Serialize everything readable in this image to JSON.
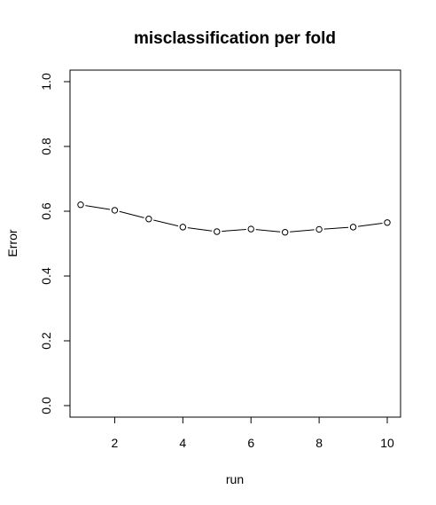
{
  "chart_data": {
    "type": "line",
    "title": "misclassification per fold",
    "xlabel": "run",
    "ylabel": "Error",
    "xlim": [
      1,
      10
    ],
    "ylim": [
      0.0,
      1.0
    ],
    "x_ticks": [
      "2",
      "4",
      "6",
      "8",
      "10"
    ],
    "y_ticks": [
      "0.0",
      "0.2",
      "0.4",
      "0.6",
      "0.8",
      "1.0"
    ],
    "grid": false,
    "legend": "none",
    "marker": "open-circle",
    "series": [
      {
        "x": [
          1,
          2,
          3,
          4,
          5,
          6,
          7,
          8,
          9,
          10
        ],
        "values": [
          0.62,
          0.603,
          0.576,
          0.551,
          0.537,
          0.545,
          0.535,
          0.544,
          0.551,
          0.565
        ]
      }
    ],
    "colors": {
      "line": "#000000",
      "marker_fill": "#ffffff",
      "frame": "#000000"
    }
  }
}
